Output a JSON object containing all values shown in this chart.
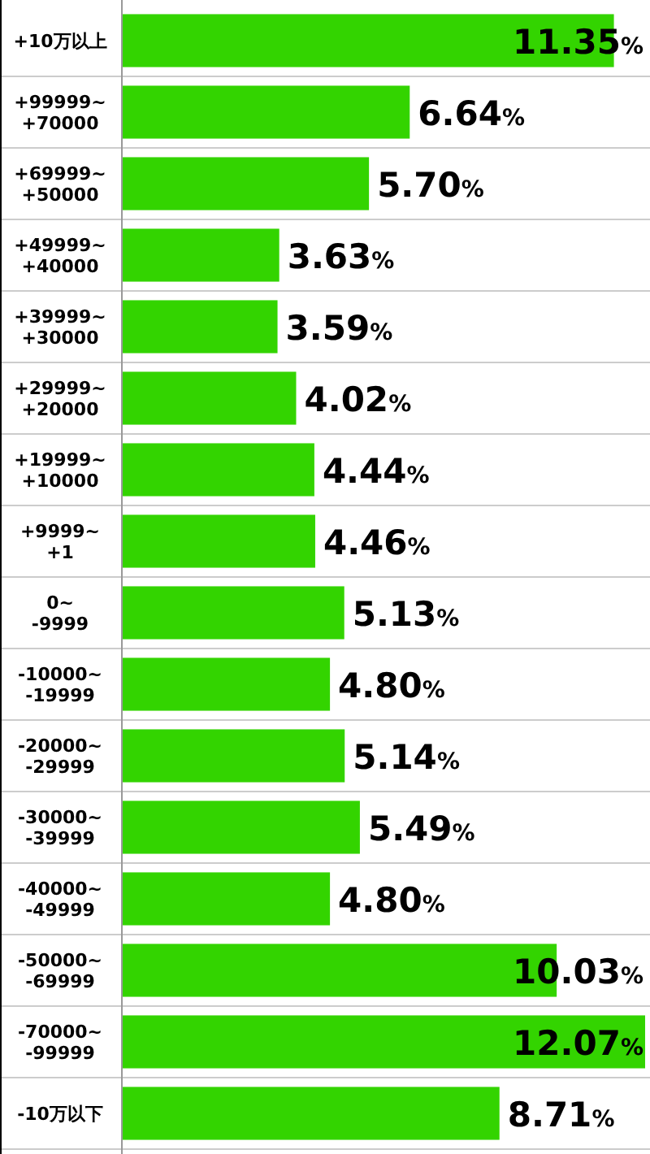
{
  "chart_data": {
    "type": "bar",
    "orientation": "horizontal",
    "color": "#33d400",
    "categories": [
      "+10万以上",
      "+99999~+70000",
      "+69999~+50000",
      "+49999~+40000",
      "+39999~+30000",
      "+29999~+20000",
      "+19999~+10000",
      "+9999~+1",
      "0~-9999",
      "-10000~-19999",
      "-20000~-29999",
      "-30000~-39999",
      "-40000~-49999",
      "-50000~-69999",
      "-70000~-99999",
      "-10万以下"
    ],
    "values": [
      11.35,
      6.64,
      5.7,
      3.63,
      3.59,
      4.02,
      4.44,
      4.46,
      5.13,
      4.8,
      5.14,
      5.49,
      4.8,
      10.03,
      12.07,
      8.71
    ],
    "value_labels": [
      "11.35%",
      "6.64%",
      "5.70%",
      "3.63%",
      "3.59%",
      "4.02%",
      "4.44%",
      "4.46%",
      "5.13%",
      "4.80%",
      "5.14%",
      "5.49%",
      "4.80%",
      "10.03%",
      "12.07%",
      "8.71%"
    ]
  }
}
